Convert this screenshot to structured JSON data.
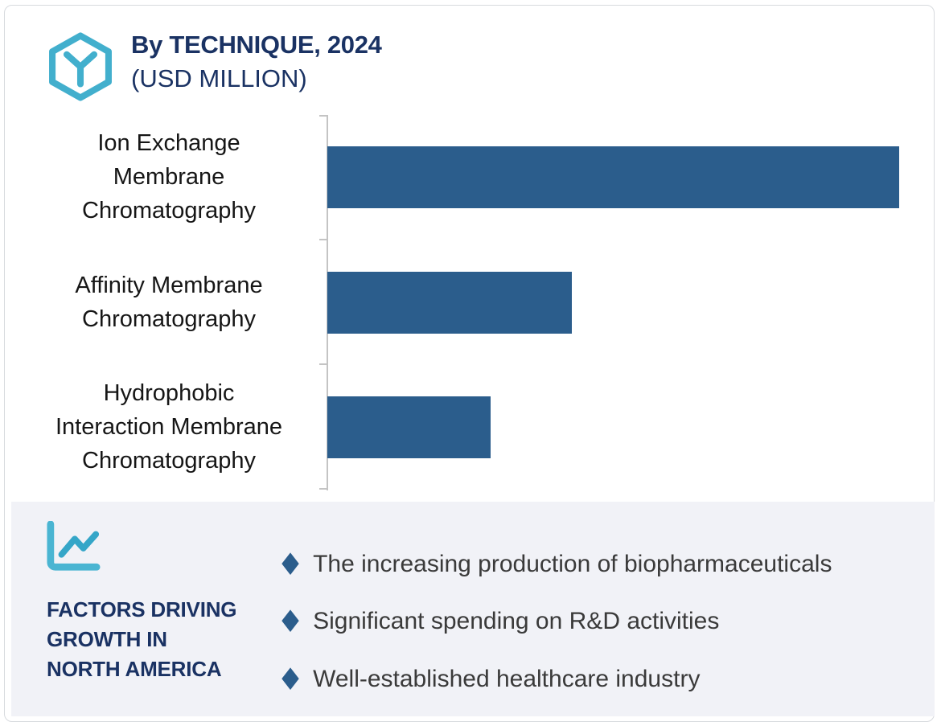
{
  "header": {
    "title": "By TECHNIQUE, 2024",
    "subtitle": "(USD MILLION)",
    "logo_icon": "hexagon-y-logo"
  },
  "chart_data": {
    "type": "bar",
    "orientation": "horizontal",
    "title": "By TECHNIQUE, 2024",
    "subtitle": "(USD MILLION)",
    "categories": [
      "Ion Exchange Membrane Chromatography",
      "Affinity Membrane Chromatography",
      "Hydrophobic Interaction Membrane Chromatography"
    ],
    "categories_display": [
      "Ion Exchange\nMembrane\nChromatography",
      "Affinity Membrane\nChromatography",
      "Hydrophobic\nInteraction Membrane\nChromatography"
    ],
    "values_pct_of_max": [
      100,
      42.7,
      28.6
    ],
    "value_labels_shown": false,
    "value_axis_shown": false,
    "gridlines": false,
    "legend": "none",
    "bar_color": "#2b5d8c",
    "axis_color": "#c4c4c4"
  },
  "factors_panel": {
    "icon": "line-chart-icon",
    "heading": "FACTORS DRIVING\nGROWTH IN\nNORTH AMERICA",
    "bullet_marker": "♦",
    "bullet_marker_color": "#2b5d8c",
    "bullets": [
      "The increasing production of biopharmaceuticals",
      "Significant spending on R&D activities",
      "Well-established healthcare industry"
    ]
  },
  "colors": {
    "navy": "#1a3263",
    "teal": "#42afcd",
    "teal_dark": "#35a6c8",
    "bar_blue": "#2b5d8c",
    "panel_bg": "#f1f2f7",
    "card_border": "#d7dade"
  }
}
